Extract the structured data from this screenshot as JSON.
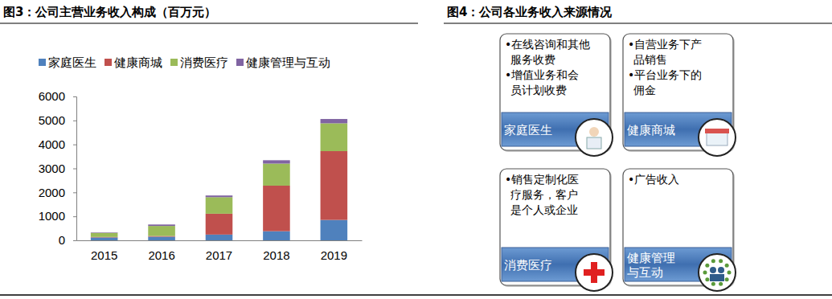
{
  "chart_data": {
    "type": "bar",
    "stacked": true,
    "title": "图3：公司主营业务收入构成（百万元）",
    "categories": [
      "2015",
      "2016",
      "2017",
      "2018",
      "2019"
    ],
    "series": [
      {
        "name": "家庭医生",
        "color": "#4f81bd",
        "values": [
          120,
          150,
          240,
          380,
          850
        ]
      },
      {
        "name": "健康商城",
        "color": "#c0504d",
        "values": [
          20,
          30,
          870,
          1900,
          2870
        ]
      },
      {
        "name": "消费医疗",
        "color": "#9bbb59",
        "values": [
          170,
          420,
          690,
          920,
          1160
        ]
      },
      {
        "name": "健康管理与互动",
        "color": "#8064a2",
        "values": [
          20,
          60,
          70,
          140,
          180
        ]
      }
    ],
    "ylim": [
      0,
      6000
    ],
    "yticks": [
      0,
      1000,
      2000,
      3000,
      4000,
      5000,
      6000
    ],
    "grid": false,
    "legend": "top"
  },
  "diagram": {
    "title": "图4：公司各业务收入来源情况",
    "boxes": [
      {
        "label": [
          "家庭医生"
        ],
        "bullets": [
          [
            "•在线咨询和其他",
            "服务收费"
          ],
          [
            "•增值业务和会",
            "员计划收费"
          ]
        ]
      },
      {
        "label": [
          "健康商城"
        ],
        "bullets": [
          [
            "•自营业务下产",
            "品销售"
          ],
          [
            "•平台业务下的",
            "佣金"
          ]
        ]
      },
      {
        "label": [
          "消费医疗"
        ],
        "bullets": [
          [
            "•销售定制化医",
            "疗服务，客户",
            "是个人或企业"
          ]
        ]
      },
      {
        "label": [
          "健康管理",
          "与互动"
        ],
        "bullets": [
          [
            "•广告收入"
          ]
        ]
      }
    ]
  }
}
